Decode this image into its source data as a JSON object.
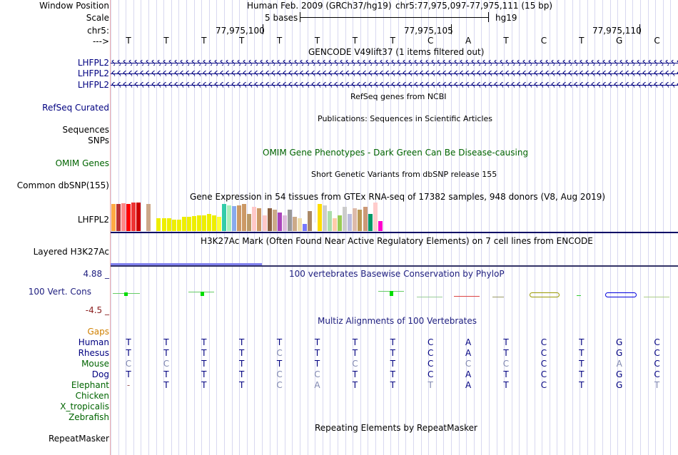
{
  "header": {
    "window_position_label": "Window Position",
    "assembly": "Human Feb. 2009 (GRCh37/hg19)",
    "position": "chr5:77,975,097-77,975,111 (15 bp)",
    "scale_label": "Scale",
    "scale_text": "5 bases",
    "db": "hg19",
    "chrom_label": "chr5:",
    "strand_label": "--->",
    "coords": [
      "77,975,100",
      "77,975,105",
      "77,975,110"
    ]
  },
  "bases": [
    "T",
    "T",
    "T",
    "T",
    "T",
    "T",
    "T",
    "T",
    "C",
    "A",
    "T",
    "C",
    "T",
    "G",
    "C"
  ],
  "tracks": {
    "gencode": {
      "title": "GENCODE V49lift37 (1 items filtered out)",
      "genes": [
        "LHFPL2",
        "LHFPL2",
        "LHFPL2"
      ]
    },
    "refseq": {
      "title": "RefSeq genes from NCBI",
      "label": "RefSeq Curated"
    },
    "pubs": {
      "title": "Publications: Sequences in Scientific Articles",
      "labels": [
        "Sequences",
        "SNPs"
      ]
    },
    "omim": {
      "title": "OMIM Gene Phenotypes - Dark Green Can Be Disease-causing",
      "label": "OMIM Genes"
    },
    "dbsnp": {
      "title": "Short Genetic Variants from dbSNP release 155",
      "label": "Common dbSNP(155)"
    },
    "gtex": {
      "title": "Gene Expression in 54 tissues from GTEx RNA-seq of 17382 samples, 948 donors (V8, Aug 2019)",
      "label": "LHFPL2",
      "values": [
        0.95,
        0.95,
        0.97,
        0.95,
        1.0,
        1.0,
        0.0,
        0.95,
        0.0,
        0.45,
        0.45,
        0.45,
        0.4,
        0.4,
        0.5,
        0.5,
        0.52,
        0.55,
        0.55,
        0.6,
        0.55,
        0.5,
        0.95,
        0.9,
        0.88,
        0.9,
        0.95,
        0.6,
        0.85,
        0.8,
        0.55,
        0.8,
        0.75,
        0.65,
        0.55,
        0.75,
        0.5,
        0.45,
        0.25,
        0.7,
        0.3,
        0.95,
        0.9,
        0.7,
        0.45,
        0.55,
        0.85,
        0.6,
        0.8,
        0.75,
        0.85,
        0.6,
        1.0,
        0.35
      ],
      "colors": [
        "#ffaa44",
        "#bb3333",
        "#ff8888",
        "#ff0000",
        "#ee3333",
        "#cc0000",
        "#ffffff",
        "#cca88a",
        "#ffffff",
        "#eeee00",
        "#eeee00",
        "#eeee00",
        "#eeee00",
        "#eeee00",
        "#eeee00",
        "#eeee00",
        "#eeee00",
        "#eeee00",
        "#eeee00",
        "#eeee00",
        "#eeee00",
        "#ffff33",
        "#33ccaa",
        "#aaeebb",
        "#88aaee",
        "#cc9966",
        "#cc9966",
        "#bb9966",
        "#ffc8c8",
        "#cc9966",
        "#ffc8c8",
        "#8a6040",
        "#ccaa88",
        "#aa44bb",
        "#ddbbdd",
        "#999999",
        "#ccaa88",
        "#eeddaa",
        "#7777ff",
        "#aa8866",
        "#ffffff",
        "#ffdd00",
        "#cccccc",
        "#aaddaa",
        "#ffccaa",
        "#99cc55",
        "#cccccc",
        "#bbbbdd",
        "#ddbbaa",
        "#bb9955",
        "#cc9977",
        "#009966",
        "#ffcccc",
        "#ff00cc"
      ]
    },
    "h3k27ac": {
      "title": "H3K27Ac Mark (Often Found Near Active Regulatory Elements) on 7 cell lines from ENCODE",
      "label": "Layered H3K27Ac"
    },
    "phylop": {
      "title": "100 vertebrates Basewise Conservation by PhyloP",
      "label": "100 Vert. Cons",
      "ymax": "4.88 _",
      "ymin": "-4.5 _"
    },
    "multiz": {
      "title": "Multiz Alignments of 100 Vertebrates",
      "gaps_label": "Gaps",
      "species": [
        {
          "name": "Human",
          "seq": [
            "T",
            "T",
            "T",
            "T",
            "T",
            "T",
            "T",
            "T",
            "C",
            "A",
            "T",
            "C",
            "T",
            "G",
            "C"
          ]
        },
        {
          "name": "Rhesus",
          "seq": [
            "T",
            "T",
            "T",
            "T",
            "C",
            "T",
            "T",
            "T",
            "C",
            "A",
            "T",
            "C",
            "T",
            "G",
            "C"
          ]
        },
        {
          "name": "Mouse",
          "seq": [
            "C",
            "C",
            "T",
            "T",
            "T",
            "T",
            "C",
            "T",
            "C",
            "C",
            "C",
            "C",
            "T",
            "A",
            "C"
          ]
        },
        {
          "name": "Dog",
          "seq": [
            "T",
            "T",
            "T",
            "T",
            "C",
            "C",
            "T",
            "T",
            "C",
            "A",
            "T",
            "C",
            "T",
            "G",
            "C"
          ]
        },
        {
          "name": "Elephant",
          "seq": [
            "-",
            "T",
            "T",
            "T",
            "C",
            "A",
            "T",
            "T",
            "T",
            "A",
            "T",
            "C",
            "T",
            "G",
            "T"
          ]
        },
        {
          "name": "Chicken",
          "seq": []
        },
        {
          "name": "X_tropicalis",
          "seq": []
        },
        {
          "name": "Zebrafish",
          "seq": []
        }
      ]
    },
    "repeatmasker": {
      "title": "Repeating Elements by RepeatMasker",
      "label": "RepeatMasker"
    }
  }
}
